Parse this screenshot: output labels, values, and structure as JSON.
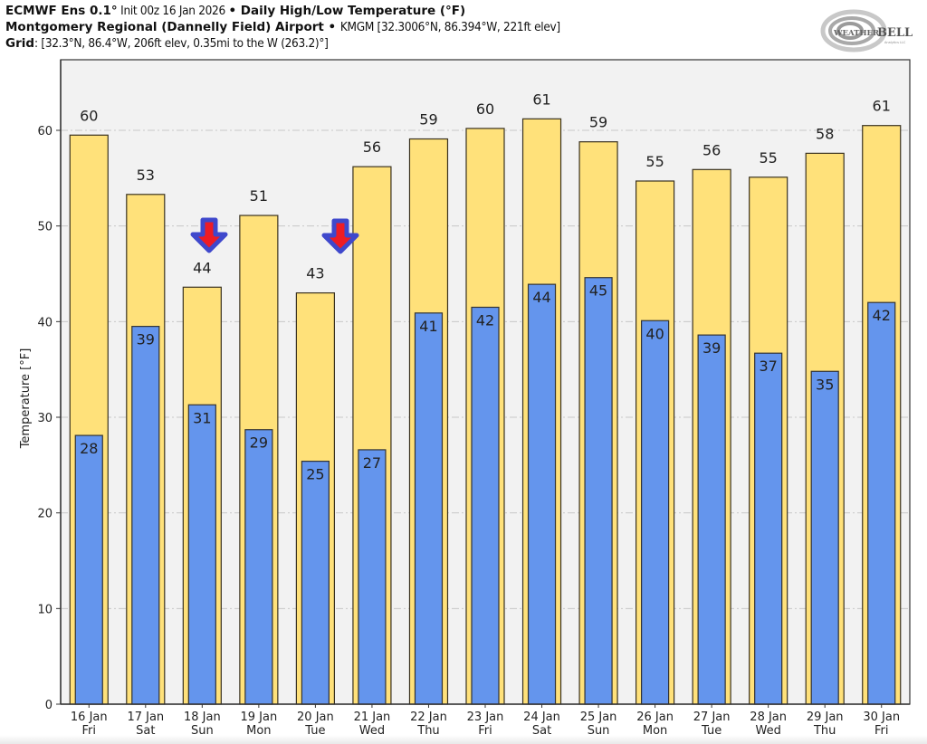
{
  "header": {
    "line1": {
      "model": "ECMWF Ens 0.1°",
      "init": " Init 00z 16 Jan 2026 ",
      "sep": "•",
      "product": " Daily High/Low Temperature (°F)"
    },
    "line2": {
      "station": "Montgomery Regional (Dannelly Field) Airport",
      "sep": " • ",
      "detail": "KMGM [32.3006°N, 86.394°W, 221ft elev]"
    },
    "line3": {
      "label": "Grid",
      "detail": ": [32.3°N, 86.4°W, 206ft elev, 0.35mi to the W (263.2)°]"
    }
  },
  "logo": {
    "text_weather": "WEATHER",
    "text_bell": "BELL",
    "sub": "Analytics LLC"
  },
  "colors": {
    "high": "#ffe17a",
    "low": "#6495ed",
    "plot_bg": "#f2f2f2",
    "arrow_fill": "#ee1c24",
    "arrow_outline": "#3f48cc"
  },
  "chart_data": {
    "type": "bar",
    "title": "Daily High/Low Temperature (°F)",
    "xlabel": "",
    "ylabel": "Temperature [°F]",
    "ylim": [
      0,
      67.5
    ],
    "yticks": [
      0,
      10,
      20,
      30,
      40,
      50,
      60
    ],
    "grid": true,
    "categories": [
      "16 Jan|Fri",
      "17 Jan|Sat",
      "18 Jan|Sun",
      "19 Jan|Mon",
      "20 Jan|Tue",
      "21 Jan|Wed",
      "22 Jan|Thu",
      "23 Jan|Fri",
      "24 Jan|Sat",
      "25 Jan|Sun",
      "26 Jan|Mon",
      "27 Jan|Tue",
      "28 Jan|Wed",
      "29 Jan|Thu",
      "30 Jan|Fri"
    ],
    "series": [
      {
        "name": "High",
        "values": [
          59.5,
          53.3,
          43.6,
          51.1,
          43.0,
          56.2,
          59.1,
          60.2,
          61.2,
          58.8,
          54.7,
          55.9,
          55.1,
          57.6,
          60.5
        ],
        "labels": [
          60,
          53,
          44,
          51,
          43,
          56,
          59,
          60,
          61,
          59,
          55,
          56,
          55,
          58,
          61
        ]
      },
      {
        "name": "Low",
        "values": [
          28.1,
          39.5,
          31.3,
          28.7,
          25.4,
          26.6,
          40.9,
          41.5,
          43.9,
          44.6,
          40.1,
          38.6,
          36.7,
          34.8,
          42.0
        ],
        "labels": [
          28,
          39,
          31,
          29,
          25,
          27,
          41,
          42,
          44,
          45,
          40,
          39,
          37,
          35,
          42
        ]
      }
    ],
    "annotations": [
      {
        "type": "down-arrow",
        "category": "18 Jan|Sun",
        "note": "red/blue down arrow above high label"
      },
      {
        "type": "down-arrow",
        "category": "20 Jan|Tue",
        "note": "red/blue down arrow right of high label"
      }
    ]
  }
}
